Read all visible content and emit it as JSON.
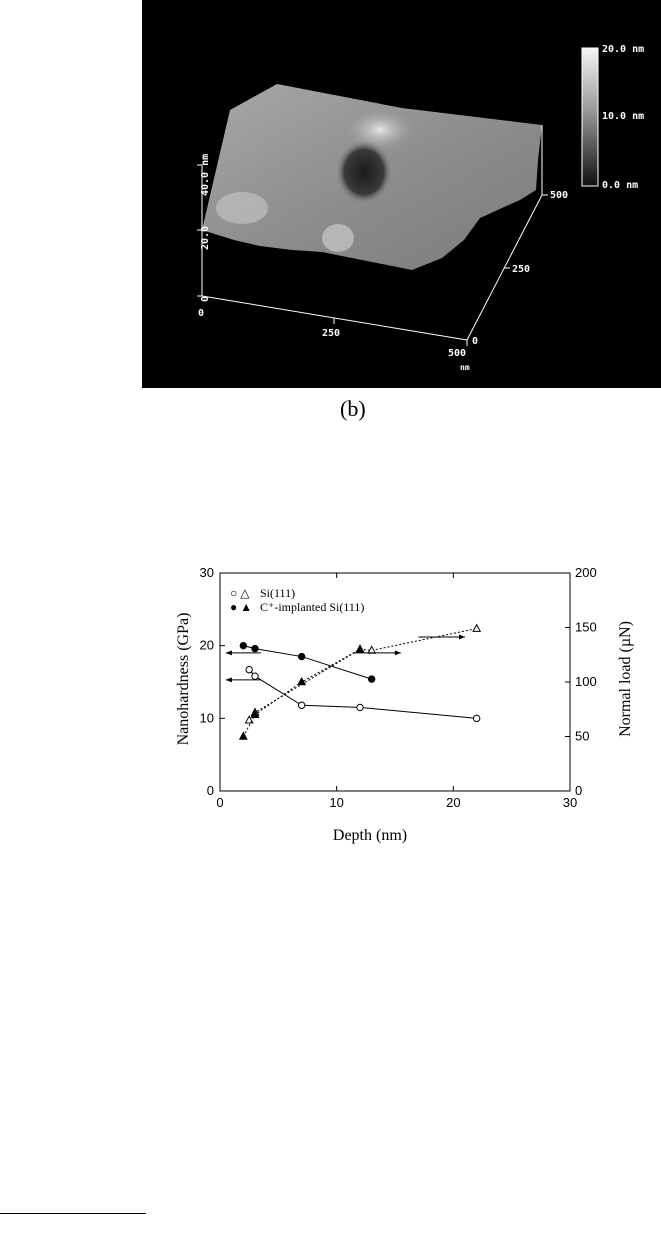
{
  "afm_image": {
    "caption": "(b)",
    "scale_bar_labels": [
      "20.0 nm",
      "10.0 nm",
      "0.0 nm"
    ],
    "z_axis_labels": [
      "40.0 nm",
      "20.0",
      "0"
    ],
    "x_axis_labels": [
      "0",
      "250",
      "500"
    ],
    "x_unit": "nm",
    "y_axis_labels": [
      "0",
      "250",
      "500"
    ]
  },
  "chart_data": {
    "type": "line",
    "xlabel": "Depth (nm)",
    "ylabel": "Nanohardness (GPa)",
    "y2label": "Normal load (µN)",
    "xlim": [
      0,
      30
    ],
    "ylim": [
      0,
      30
    ],
    "y2lim": [
      0,
      200
    ],
    "x_ticks": [
      0,
      10,
      20,
      30
    ],
    "y_ticks": [
      0,
      10,
      20,
      30
    ],
    "y2_ticks": [
      0,
      50,
      100,
      150,
      200
    ],
    "legend": [
      {
        "symbols": "○ △",
        "label": "Si(111)"
      },
      {
        "symbols": "● ▲",
        "label": "C⁺-implanted Si(111)"
      }
    ],
    "legend_position": "top-left",
    "series": [
      {
        "marker": "open-circle",
        "axis": "left",
        "line": "solid",
        "x": [
          2.5,
          3,
          7,
          12,
          22
        ],
        "y": [
          16.7,
          15.8,
          11.8,
          11.5,
          10.0
        ]
      },
      {
        "marker": "filled-circle",
        "axis": "left",
        "line": "solid",
        "x": [
          2,
          3,
          7,
          13
        ],
        "y": [
          20.0,
          19.6,
          18.5,
          15.4
        ]
      },
      {
        "marker": "open-triangle",
        "axis": "right",
        "line": "dotted",
        "x": [
          2.5,
          3,
          12,
          13,
          22
        ],
        "y": [
          65,
          72,
          130,
          129,
          149
        ]
      },
      {
        "marker": "filled-triangle",
        "axis": "right",
        "line": "dotted",
        "x": [
          2,
          3,
          7,
          12
        ],
        "y": [
          50,
          70,
          100,
          130
        ]
      }
    ],
    "arrows": [
      {
        "x_from": 3.5,
        "x_to": 0.5,
        "y": 19.0,
        "axis": "left"
      },
      {
        "x_from": 3.5,
        "x_to": 0.5,
        "y": 15.3,
        "axis": "left"
      },
      {
        "x_from": 11.5,
        "x_to": 15.5,
        "y": 19.0,
        "axis": "left",
        "side": "right"
      },
      {
        "x_from": 17,
        "x_to": 21,
        "y": 21.2,
        "axis": "left",
        "side": "right"
      }
    ]
  }
}
